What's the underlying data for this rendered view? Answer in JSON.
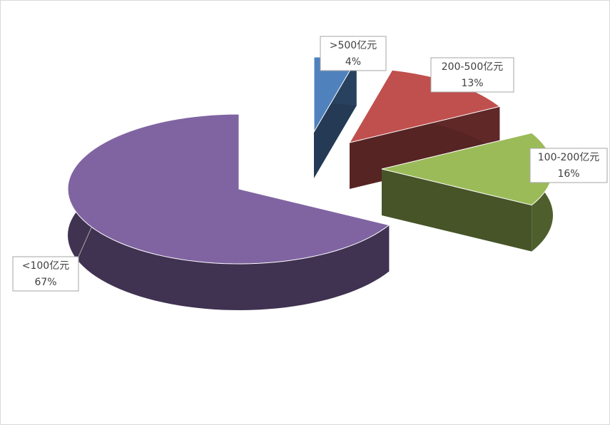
{
  "chart_data": {
    "type": "pie3d",
    "categories": [
      ">500亿元",
      "200-500亿元",
      "100-200亿元",
      "<100亿元"
    ],
    "values": [
      4,
      13,
      16,
      67
    ],
    "value_labels": [
      "4%",
      "13%",
      "16%",
      "67%"
    ],
    "colors": [
      "#4f81bd",
      "#c0504d",
      "#9bbb59",
      "#8064a2"
    ]
  }
}
